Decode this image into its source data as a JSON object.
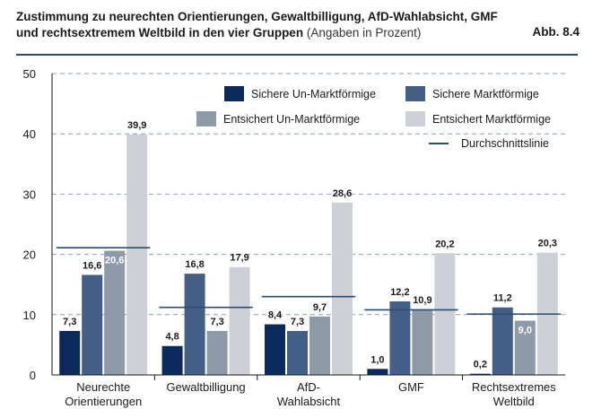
{
  "header": {
    "title_line1": "Zustimmung zu neurechten Orientierungen, Gewaltbilligung, AfD-Wahlabsicht, GMF",
    "title_line2": "und rechtsextremem Weltbild in den vier Gruppen",
    "title_note": "(Angaben in Prozent)",
    "figure_label": "Abb. 8.4"
  },
  "chart_data": {
    "type": "bar",
    "title": "Zustimmung zu neurechten Orientierungen, Gewaltbilligung, AfD-Wahlabsicht, GMF und rechtsextremem Weltbild in den vier Gruppen",
    "subtitle": "(Angaben in Prozent)",
    "xlabel": "",
    "ylabel": "",
    "ylim": [
      0,
      50
    ],
    "yticks": [
      0,
      10,
      20,
      30,
      40,
      50
    ],
    "grid": true,
    "legend_position": "top-right",
    "categories": [
      [
        "Neurechte",
        "Orientierungen"
      ],
      [
        "Gewaltbilligung"
      ],
      [
        "AfD-",
        "Wahlabsicht"
      ],
      [
        "GMF"
      ],
      [
        "Rechtsextremes",
        "Weltbild"
      ]
    ],
    "series": [
      {
        "name": "Sichere Un-Marktförmige",
        "color": "#0b2a5b",
        "values": [
          7.3,
          4.8,
          8.4,
          1.0,
          0.2
        ],
        "labels": [
          "7,3",
          "4,8",
          "8,4",
          "1,0",
          "0,2"
        ]
      },
      {
        "name": "Sichere Marktförmige",
        "color": "#445f86",
        "values": [
          16.6,
          16.8,
          7.3,
          12.2,
          11.2
        ],
        "labels": [
          "16,6",
          "16,8",
          "7,3",
          "12,2",
          "11,2"
        ]
      },
      {
        "name": "Entsichert Un-Marktförmige",
        "color": "#8f9aa9",
        "values": [
          20.6,
          7.3,
          9.7,
          10.9,
          9.0
        ],
        "labels": [
          "20,6",
          "7,3",
          "9,7",
          "10,9",
          "9,0"
        ]
      },
      {
        "name": "Entsichert Marktförmige",
        "color": "#cdd0d6",
        "values": [
          39.9,
          17.9,
          28.6,
          20.2,
          20.3
        ],
        "labels": [
          "39,9",
          "17,9",
          "28,6",
          "20,2",
          "20,3"
        ]
      }
    ],
    "average_line": {
      "name": "Durchschnittslinie",
      "color": "#2c4a73",
      "values": [
        21.1,
        11.2,
        13.0,
        10.8,
        10.1
      ]
    },
    "label_inside": [
      [
        0,
        2
      ],
      [
        4,
        2
      ]
    ]
  }
}
